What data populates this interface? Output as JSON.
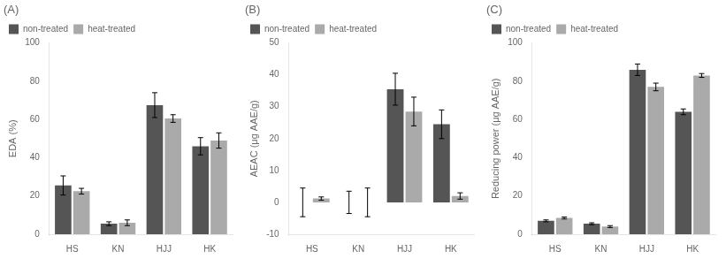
{
  "chart_data": [
    {
      "type": "bar",
      "title": "(A)",
      "ylabel": "EDA (%)",
      "categories": [
        "HS",
        "KN",
        "HJJ",
        "HK"
      ],
      "series": [
        {
          "name": "non-treated",
          "color": "#555555",
          "values": [
            25.5,
            5.5,
            67.5,
            46.0
          ],
          "errors": [
            5.0,
            1.0,
            6.5,
            4.5
          ]
        },
        {
          "name": "heat-treated",
          "color": "#aaaaaa",
          "values": [
            22.5,
            6.0,
            60.5,
            49.0
          ],
          "errors": [
            1.5,
            1.5,
            2.0,
            4.0
          ]
        }
      ],
      "ylim": [
        0,
        100
      ],
      "yticks": [
        0,
        20,
        40,
        60,
        80,
        100
      ],
      "grid": false,
      "legend": "upper left"
    },
    {
      "type": "bar",
      "title": "(B)",
      "ylabel": "AEAC (μg AAE/g)",
      "categories": [
        "HS",
        "KN",
        "HJJ",
        "HK"
      ],
      "series": [
        {
          "name": "non-treated",
          "color": "#555555",
          "values": [
            0.0,
            0.0,
            35.5,
            24.5
          ],
          "errors": [
            4.5,
            3.5,
            5.0,
            4.5
          ]
        },
        {
          "name": "heat-treated",
          "color": "#aaaaaa",
          "values": [
            1.2,
            0.0,
            28.5,
            2.0
          ],
          "errors": [
            0.5,
            4.5,
            4.5,
            1.0
          ]
        }
      ],
      "ylim": [
        -10,
        50
      ],
      "yticks": [
        -10,
        0,
        10,
        20,
        30,
        40,
        50
      ],
      "grid": false,
      "legend": "upper left"
    },
    {
      "type": "bar",
      "title": "(C)",
      "ylabel": "Reducing power (μg AAE/g)",
      "categories": [
        "HS",
        "KN",
        "HJJ",
        "HK"
      ],
      "series": [
        {
          "name": "non-treated",
          "color": "#555555",
          "values": [
            7.0,
            5.5,
            86.0,
            64.0
          ],
          "errors": [
            0.5,
            0.5,
            3.0,
            1.5
          ]
        },
        {
          "name": "heat-treated",
          "color": "#aaaaaa",
          "values": [
            8.5,
            4.0,
            77.0,
            83.0
          ],
          "errors": [
            0.5,
            0.5,
            2.0,
            1.0
          ]
        }
      ],
      "ylim": [
        0,
        100
      ],
      "yticks": [
        0,
        20,
        40,
        60,
        80,
        100
      ],
      "grid": false,
      "legend": "upper left"
    }
  ]
}
